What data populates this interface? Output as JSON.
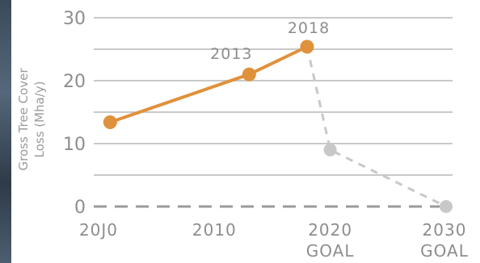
{
  "chart_data": {
    "type": "line",
    "ylabel_line1": "Gross Tree Cover",
    "ylabel_line2": "Loss (Mha/y)",
    "ylim": [
      0,
      30
    ],
    "yticks": [
      "0",
      "10",
      "20",
      "30"
    ],
    "xticks": [
      {
        "line1": "20J0",
        "line2": ""
      },
      {
        "line1": "2010",
        "line2": ""
      },
      {
        "line1": "2020",
        "line2": "GOAL"
      },
      {
        "line1": "2030",
        "line2": "GOAL"
      }
    ],
    "grid": true,
    "series": [
      {
        "style": "solid",
        "color": "#e0913b",
        "points": [
          {
            "x": 2001,
            "y": 13.4,
            "label": ""
          },
          {
            "x": 2013,
            "y": 21.0,
            "label": "2013"
          },
          {
            "x": 2018,
            "y": 25.4,
            "label": "2018"
          }
        ]
      },
      {
        "style": "dashed",
        "color": "#c8c8c8",
        "points": [
          {
            "x": 2018,
            "y": 25.4,
            "label": ""
          },
          {
            "x": 2020,
            "y": 9.0,
            "label": ""
          },
          {
            "x": 2030,
            "y": 0,
            "label": ""
          }
        ]
      }
    ]
  }
}
